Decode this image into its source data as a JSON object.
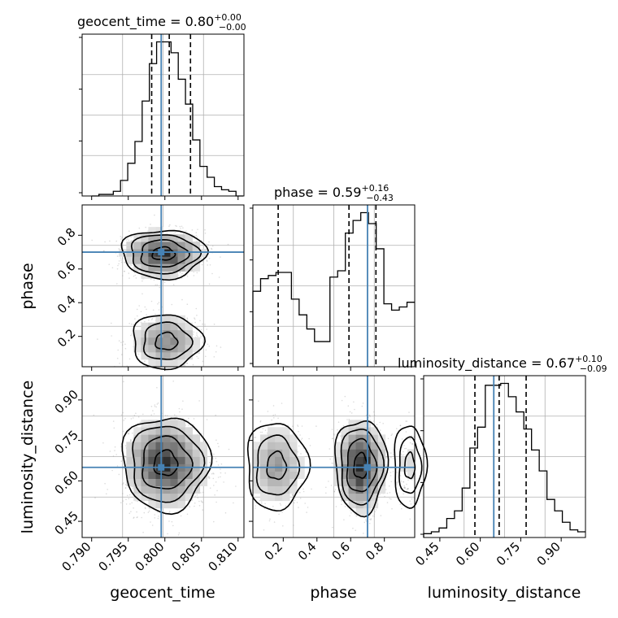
{
  "chart_data": {
    "type": "corner",
    "params": [
      {
        "name": "geocent_time",
        "median": "0.80",
        "plus": "+0.00",
        "minus": "−0.00",
        "range": [
          0.7887,
          0.8108
        ],
        "ticks": [
          "0.790",
          "0.795",
          "0.800",
          "0.805",
          "0.810"
        ],
        "tick_values": [
          0.79,
          0.795,
          0.8,
          0.805,
          0.81
        ],
        "truth": 0.7995,
        "quantiles": [
          0.7982,
          0.8006,
          0.8035
        ]
      },
      {
        "name": "phase",
        "median": "0.59",
        "plus": "+0.16",
        "minus": "−0.43",
        "range": [
          0.02,
          0.98
        ],
        "ticks": [
          "0.2",
          "0.4",
          "0.6",
          "0.8"
        ],
        "tick_values": [
          0.2,
          0.4,
          0.6,
          0.8
        ],
        "truth": 0.7,
        "quantiles": [
          0.17,
          0.59,
          0.75
        ]
      },
      {
        "name": "luminosity_distance",
        "median": "0.67",
        "plus": "+0.10",
        "minus": "−0.09",
        "range": [
          0.39,
          0.99
        ],
        "ticks": [
          "0.45",
          "0.60",
          "0.75",
          "0.90"
        ],
        "tick_values": [
          0.45,
          0.6,
          0.75,
          0.9
        ],
        "truth": 0.65,
        "quantiles": [
          0.58,
          0.67,
          0.77
        ]
      }
    ],
    "histograms": {
      "geocent_time": {
        "bin_edges": [
          0.79,
          0.8107
        ],
        "counts": [
          0,
          1,
          1,
          3,
          10,
          21,
          35,
          61,
          85,
          99,
          99,
          92,
          75,
          59,
          36,
          19,
          12,
          6,
          4,
          3,
          0
        ]
      },
      "phase": {
        "bin_edges": [
          0.02,
          0.98
        ],
        "counts": [
          48,
          56,
          58,
          60,
          60,
          43,
          33,
          24,
          16,
          16,
          57,
          61,
          85,
          93,
          98,
          91,
          75,
          40,
          36,
          38,
          41
        ]
      },
      "luminosity_distance": {
        "bin_edges": [
          0.39,
          0.99
        ],
        "counts": [
          2,
          3,
          5,
          10,
          14,
          26,
          47,
          58,
          80,
          80,
          81,
          74,
          66,
          57,
          46,
          35,
          20,
          14,
          8,
          4,
          3
        ]
      }
    },
    "grid": true,
    "truth_color": "#4682b4"
  }
}
